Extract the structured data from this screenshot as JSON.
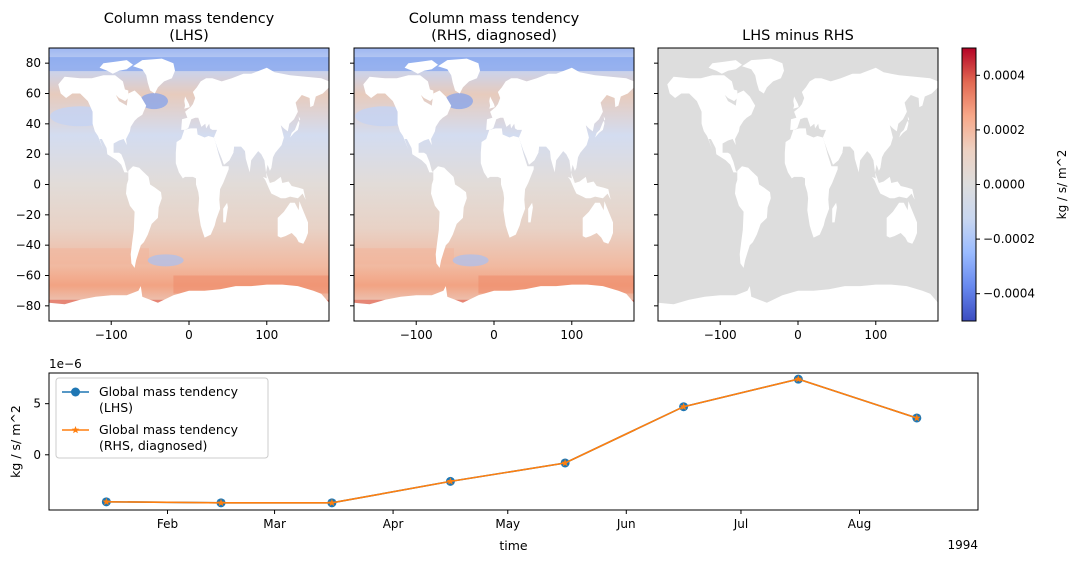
{
  "chart_data": [
    {
      "type": "heatmap",
      "title": "Column mass tendency\n(LHS)",
      "xticks": [
        -100,
        0,
        100
      ],
      "yticks": [
        80,
        60,
        40,
        20,
        0,
        -20,
        -40,
        -60,
        -80
      ],
      "xlim": [
        -180,
        180
      ],
      "ylim": [
        -90,
        90
      ],
      "show_yticklabels": true
    },
    {
      "type": "heatmap",
      "title": "Column mass tendency\n(RHS, diagnosed)",
      "xticks": [
        -100,
        0,
        100
      ],
      "yticks": [
        80,
        60,
        40,
        20,
        0,
        -20,
        -40,
        -60,
        -80
      ],
      "xlim": [
        -180,
        180
      ],
      "ylim": [
        -90,
        90
      ],
      "show_yticklabels": false
    },
    {
      "type": "heatmap",
      "title": "LHS minus RHS",
      "xticks": [
        -100,
        0,
        100
      ],
      "yticks": [
        80,
        60,
        40,
        20,
        0,
        -20,
        -40,
        -60,
        -80
      ],
      "xlim": [
        -180,
        180
      ],
      "ylim": [
        -90,
        90
      ],
      "show_yticklabels": false
    },
    {
      "type": "line",
      "xlabel": "time",
      "ylabel": "kg / s/ m^2",
      "offset_text": "1e−6",
      "year_label": "1994",
      "x": [
        "1994-01-16",
        "1994-02-15",
        "1994-03-16",
        "1994-04-16",
        "1994-05-16",
        "1994-06-16",
        "1994-07-16",
        "1994-08-16"
      ],
      "xtick_labels": [
        "Feb",
        "Mar",
        "Apr",
        "May",
        "Jun",
        "Jul",
        "Aug"
      ],
      "xtick_dates": [
        "1994-02-01",
        "1994-03-01",
        "1994-04-01",
        "1994-05-01",
        "1994-06-01",
        "1994-07-01",
        "1994-08-01"
      ],
      "xlim": [
        "1994-01-01",
        "1994-09-01"
      ],
      "yticks": [
        5,
        0
      ],
      "ylim": [
        -5.4,
        8.0
      ],
      "legend_position": "upper-left",
      "series": [
        {
          "name": "Global mass tendency\n(LHS)",
          "color": "#1f77b4",
          "marker": "circle",
          "values": [
            -4.6,
            -4.7,
            -4.7,
            -2.6,
            -0.8,
            4.7,
            7.4,
            3.6
          ]
        },
        {
          "name": "Global mass tendency\n(RHS, diagnosed)",
          "color": "#ff7f0e",
          "marker": "star",
          "values": [
            -4.6,
            -4.7,
            -4.7,
            -2.6,
            -0.8,
            4.7,
            7.4,
            3.6
          ]
        }
      ]
    }
  ],
  "colorbar": {
    "label": "kg / s/ m^2",
    "ticks": [
      0.0004,
      0.0002,
      0.0,
      -0.0002,
      -0.0004
    ],
    "tick_labels": [
      "0.0004",
      "0.0002",
      "0.0000",
      "−0.0002",
      "−0.0004"
    ],
    "range": [
      -0.0005,
      0.0005
    ],
    "colormap": "coolwarm",
    "colors": [
      "#3b4cc0",
      "#6788ee",
      "#9abbff",
      "#c9d7f0",
      "#dddddd",
      "#edd1c2",
      "#f7a889",
      "#e26952",
      "#b40426"
    ]
  },
  "colors": {
    "land": "#ffffff",
    "zero_field": "#dddddd"
  }
}
